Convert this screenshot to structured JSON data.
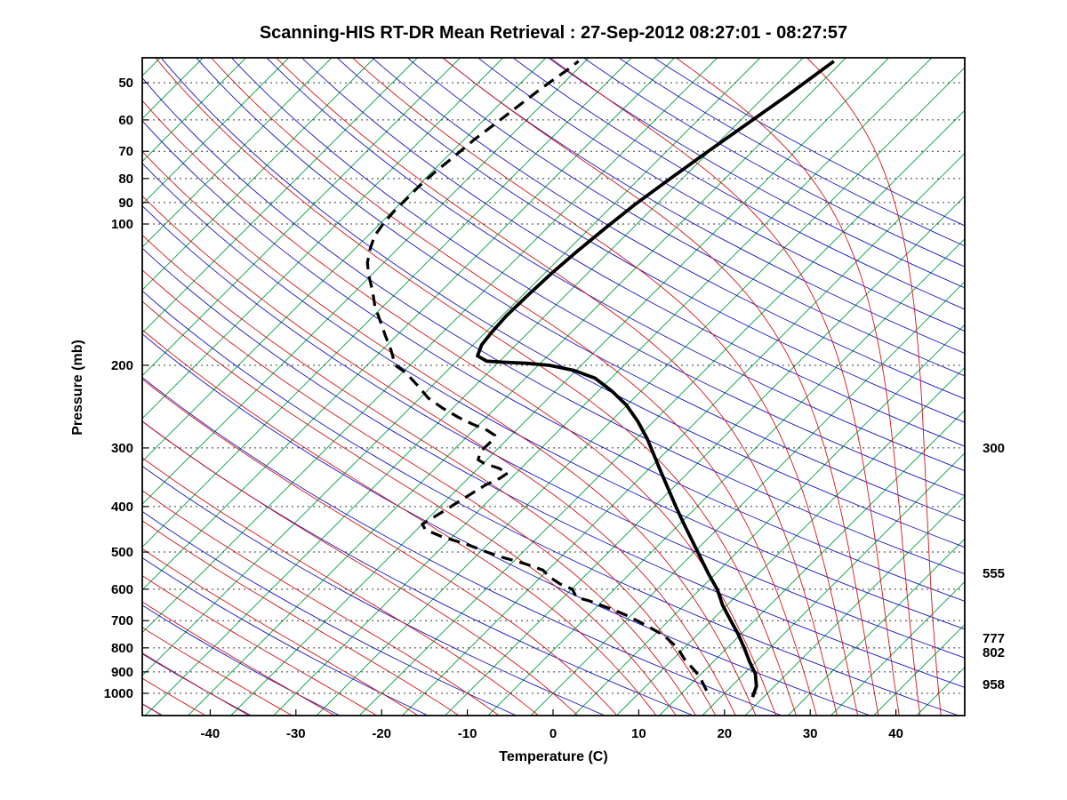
{
  "chart_data": {
    "type": "skewt-log-p",
    "title": "Scanning-HIS RT-DR Mean Retrieval : 27-Sep-2012 08:27:01 - 08:27:57",
    "xlabel": "Temperature (C)",
    "ylabel": "Pressure (mb)",
    "x_ticks": [
      -40,
      -30,
      -20,
      -10,
      0,
      10,
      20,
      30,
      40
    ],
    "pressure_ticks": [
      50,
      60,
      70,
      80,
      90,
      100,
      200,
      300,
      400,
      500,
      600,
      700,
      800,
      900,
      1000
    ],
    "pressure_range": [
      44,
      1120
    ],
    "surface_temp_range": [
      -48,
      48
    ],
    "skew_deg": 45,
    "grid": "dotted-isobars",
    "legend_position": "none",
    "right_level_labels": [
      {
        "label": "300",
        "pressure": 300
      },
      {
        "label": "555",
        "pressure": 555
      },
      {
        "label": "777",
        "pressure": 777
      },
      {
        "label": "802",
        "pressure": 802
      },
      {
        "label": "958",
        "pressure": 958
      }
    ],
    "reference_lines": {
      "isotherms": {
        "color": "#00A040",
        "start": -120,
        "end": 45,
        "step": 5
      },
      "dry_adiabats": {
        "color": "#1515C8",
        "start": -60,
        "end": 240,
        "step": 10
      },
      "moist_adiabats": {
        "color": "#D41414",
        "cold_start": -50,
        "cold_end": 10,
        "cold_step": 5,
        "warm_start": 12.5,
        "warm_end": 45,
        "warm_step": 2.5
      },
      "isobars": {
        "color": "#3A3A3A",
        "style": "dotted"
      }
    },
    "series": [
      {
        "name": "temperature",
        "style": "solid",
        "color": "#000000",
        "points": [
          [
            1018,
            23.7
          ],
          [
            966,
            22.9
          ],
          [
            908,
            21.3
          ],
          [
            858,
            19.3
          ],
          [
            800,
            17.0
          ],
          [
            746,
            14.6
          ],
          [
            699,
            12.2
          ],
          [
            649,
            9.5
          ],
          [
            600,
            7.0
          ],
          [
            555,
            4.1
          ],
          [
            513,
            1.3
          ],
          [
            474,
            -1.5
          ],
          [
            438,
            -4.3
          ],
          [
            402,
            -7.3
          ],
          [
            368,
            -10.3
          ],
          [
            338,
            -13.2
          ],
          [
            311,
            -16.0
          ],
          [
            287,
            -18.7
          ],
          [
            263,
            -21.9
          ],
          [
            243,
            -25.1
          ],
          [
            227,
            -28.4
          ],
          [
            213,
            -31.9
          ],
          [
            205,
            -35.3
          ],
          [
            200,
            -38.7
          ],
          [
            198,
            -41.6
          ],
          [
            197,
            -44.4
          ],
          [
            196,
            -46.5
          ],
          [
            191,
            -48.2
          ],
          [
            181,
            -49.0
          ],
          [
            170,
            -49.3
          ],
          [
            157,
            -49.5
          ],
          [
            142,
            -49.4
          ],
          [
            128,
            -49.2
          ],
          [
            115,
            -48.8
          ],
          [
            102,
            -48.2
          ],
          [
            91,
            -47.5
          ],
          [
            80,
            -46.4
          ],
          [
            71,
            -45.3
          ],
          [
            61,
            -43.8
          ],
          [
            53,
            -42.4
          ],
          [
            45,
            -41.0
          ]
        ]
      },
      {
        "name": "dewpoint",
        "style": "dashed",
        "color": "#000000",
        "points": [
          [
            987,
            17.6
          ],
          [
            933,
            15.6
          ],
          [
            901,
            14.2
          ],
          [
            847,
            11.4
          ],
          [
            800,
            9.2
          ],
          [
            753,
            6.2
          ],
          [
            709,
            2.2
          ],
          [
            684,
            -0.3
          ],
          [
            664,
            -2.7
          ],
          [
            635,
            -6.6
          ],
          [
            624,
            -8.5
          ],
          [
            600,
            -9.9
          ],
          [
            585,
            -11.9
          ],
          [
            567,
            -13.8
          ],
          [
            546,
            -15.6
          ],
          [
            529,
            -18.5
          ],
          [
            513,
            -21.8
          ],
          [
            500,
            -24.2
          ],
          [
            481,
            -27.5
          ],
          [
            464,
            -31.2
          ],
          [
            448,
            -34.0
          ],
          [
            436,
            -35.0
          ],
          [
            411,
            -34.1
          ],
          [
            383,
            -33.1
          ],
          [
            360,
            -32.2
          ],
          [
            348,
            -31.3
          ],
          [
            339,
            -31.0
          ],
          [
            331,
            -32.7
          ],
          [
            324,
            -34.8
          ],
          [
            318,
            -36.0
          ],
          [
            305,
            -36.7
          ],
          [
            291,
            -36.6
          ],
          [
            282,
            -36.9
          ],
          [
            275,
            -38.4
          ],
          [
            267,
            -40.8
          ],
          [
            258,
            -43.3
          ],
          [
            247,
            -46.1
          ],
          [
            235,
            -49.0
          ],
          [
            220,
            -51.9
          ],
          [
            207,
            -54.7
          ],
          [
            200,
            -56.7
          ],
          [
            186,
            -58.9
          ],
          [
            173,
            -61.3
          ],
          [
            161,
            -63.6
          ],
          [
            150,
            -65.9
          ],
          [
            139,
            -68.0
          ],
          [
            129,
            -70.2
          ],
          [
            121,
            -71.9
          ],
          [
            113,
            -73.2
          ],
          [
            106,
            -74.2
          ],
          [
            100,
            -74.6
          ],
          [
            94,
            -74.8
          ],
          [
            88,
            -74.8
          ],
          [
            83,
            -74.8
          ],
          [
            77,
            -74.6
          ],
          [
            72,
            -74.2
          ],
          [
            66,
            -73.8
          ],
          [
            61,
            -73.2
          ],
          [
            56,
            -72.6
          ],
          [
            51,
            -71.9
          ],
          [
            47,
            -71.1
          ],
          [
            45,
            -70.8
          ]
        ]
      }
    ]
  }
}
